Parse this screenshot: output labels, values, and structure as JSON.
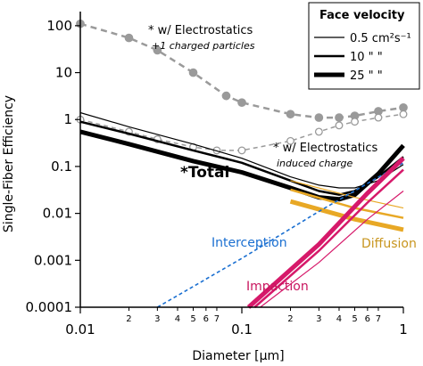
{
  "chart_data": {
    "type": "line",
    "xlabel": "Diameter  [µm]",
    "ylabel": "Single-Fiber Efficiency",
    "xscale": "log",
    "yscale": "log",
    "xlim": [
      0.01,
      1
    ],
    "ylim": [
      0.0001,
      200
    ],
    "x_ticks": [
      {
        "v": 0.01,
        "label": "0.01"
      },
      {
        "v": 0.1,
        "label": "0.1"
      },
      {
        "v": 1,
        "label": "1"
      }
    ],
    "x_minor_ticks": [
      {
        "v": 0.02,
        "label": "2"
      },
      {
        "v": 0.03,
        "label": "3"
      },
      {
        "v": 0.04,
        "label": "4"
      },
      {
        "v": 0.05,
        "label": "5"
      },
      {
        "v": 0.06,
        "label": "6"
      },
      {
        "v": 0.07,
        "label": "7"
      },
      {
        "v": 0.2,
        "label": "2"
      },
      {
        "v": 0.3,
        "label": "3"
      },
      {
        "v": 0.4,
        "label": "4"
      },
      {
        "v": 0.5,
        "label": "5"
      },
      {
        "v": 0.6,
        "label": "6"
      },
      {
        "v": 0.7,
        "label": "7"
      }
    ],
    "y_ticks": [
      {
        "v": 100,
        "label": "100"
      },
      {
        "v": 10,
        "label": "10"
      },
      {
        "v": 1,
        "label": "1"
      },
      {
        "v": 0.1,
        "label": "0.1"
      },
      {
        "v": 0.01,
        "label": "0.01"
      },
      {
        "v": 0.001,
        "label": "0.001"
      },
      {
        "v": 0.0001,
        "label": "0.0001"
      }
    ],
    "legend": {
      "title": "Face velocity",
      "position": "top-right",
      "entries": [
        {
          "label": "0.5 cm²s⁻¹",
          "width": 1.2
        },
        {
          "label": "10  \"   \"",
          "width": 2.5
        },
        {
          "label": "25  \"   \"",
          "width": 5
        }
      ]
    },
    "annotations": [
      {
        "id": "es-charged",
        "text": "* w/ Electrostatics",
        "sub": "+1 charged particles"
      },
      {
        "id": "es-induced",
        "text": "* w/ Electrostatics",
        "sub": "induced charge"
      },
      {
        "id": "total",
        "text": "*Total"
      },
      {
        "id": "interception",
        "text": "Interception",
        "color": "#1a6fd1"
      },
      {
        "id": "diffusion",
        "text": "Diffusion",
        "color": "#c8951e"
      },
      {
        "id": "impaction",
        "text": "Impaction",
        "color": "#c8155e"
      }
    ],
    "colors": {
      "total": "#000000",
      "electrostatic": "#9a9a9a",
      "diffusion": "#e8a825",
      "interception": "#1a6fd1",
      "impaction": "#d6196a"
    },
    "series": [
      {
        "kind": "electrostatic-charged",
        "x": [
          0.01,
          0.02,
          0.03,
          0.05,
          0.08,
          0.1,
          0.2,
          0.3,
          0.4,
          0.5,
          0.7,
          1
        ],
        "y": [
          110,
          55,
          30,
          10,
          3.2,
          2.3,
          1.3,
          1.1,
          1.1,
          1.2,
          1.5,
          1.8
        ]
      },
      {
        "kind": "electrostatic-induced",
        "x": [
          0.01,
          0.02,
          0.03,
          0.05,
          0.07,
          0.1,
          0.2,
          0.3,
          0.4,
          0.5,
          0.7,
          1
        ],
        "y": [
          1.0,
          0.55,
          0.38,
          0.26,
          0.22,
          0.22,
          0.35,
          0.55,
          0.75,
          0.9,
          1.1,
          1.3
        ]
      },
      {
        "kind": "total",
        "velocity": "0.5",
        "x": [
          0.01,
          0.02,
          0.05,
          0.1,
          0.2,
          0.3,
          0.4,
          0.5,
          0.7,
          1
        ],
        "y": [
          1.4,
          0.7,
          0.3,
          0.15,
          0.06,
          0.04,
          0.035,
          0.035,
          0.05,
          0.11
        ]
      },
      {
        "kind": "total",
        "velocity": "10",
        "x": [
          0.01,
          0.02,
          0.05,
          0.1,
          0.2,
          0.3,
          0.4,
          0.5,
          0.7,
          1
        ],
        "y": [
          0.9,
          0.5,
          0.22,
          0.12,
          0.05,
          0.03,
          0.025,
          0.03,
          0.06,
          0.16
        ]
      },
      {
        "kind": "total",
        "velocity": "25",
        "x": [
          0.01,
          0.02,
          0.05,
          0.1,
          0.2,
          0.3,
          0.4,
          0.5,
          0.7,
          1
        ],
        "y": [
          0.55,
          0.3,
          0.13,
          0.075,
          0.035,
          0.022,
          0.02,
          0.025,
          0.07,
          0.28
        ]
      },
      {
        "kind": "diffusion",
        "velocity": "0.5",
        "x": [
          0.2,
          0.5,
          1
        ],
        "y": [
          0.05,
          0.022,
          0.013
        ]
      },
      {
        "kind": "diffusion",
        "velocity": "10",
        "x": [
          0.2,
          0.5,
          1
        ],
        "y": [
          0.032,
          0.013,
          0.008
        ]
      },
      {
        "kind": "diffusion",
        "velocity": "25",
        "x": [
          0.2,
          0.5,
          1
        ],
        "y": [
          0.018,
          0.0075,
          0.0045
        ]
      },
      {
        "kind": "interception",
        "x": [
          0.03,
          0.1,
          0.3,
          1
        ],
        "y": [
          0.0001,
          0.0011,
          0.011,
          0.12
        ]
      },
      {
        "kind": "impaction",
        "velocity": "0.5",
        "x": [
          0.13,
          0.3,
          0.6,
          1
        ],
        "y": [
          0.0001,
          0.0009,
          0.0075,
          0.03
        ]
      },
      {
        "kind": "impaction",
        "velocity": "10",
        "x": [
          0.12,
          0.3,
          0.6,
          1
        ],
        "y": [
          0.0001,
          0.0016,
          0.017,
          0.085
        ]
      },
      {
        "kind": "impaction",
        "velocity": "25",
        "x": [
          0.11,
          0.3,
          0.6,
          1
        ],
        "y": [
          0.0001,
          0.0022,
          0.027,
          0.15
        ]
      }
    ]
  }
}
